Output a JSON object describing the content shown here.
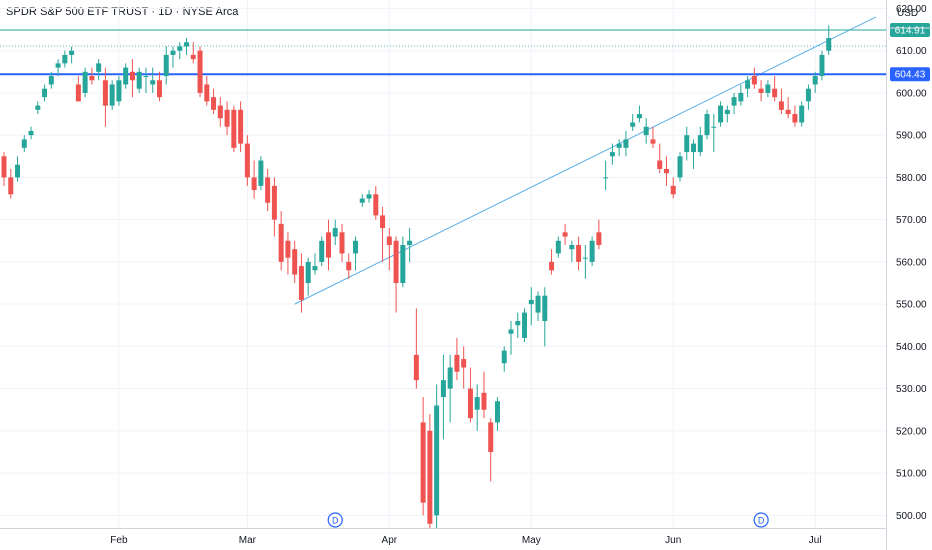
{
  "title": "SPDR S&P 500 ETF TRUST · 1D · NYSE Arca",
  "currency": "USD",
  "colors": {
    "up": "#26a69a",
    "down": "#ef5350",
    "grid": "#f0f3fa",
    "trendline": "#5aaee6",
    "level_blue": "#2962ff",
    "level_green": "#26a69a"
  },
  "chart_data": {
    "type": "candlestick",
    "ylim": [
      497,
      622
    ],
    "yticks": [
      500,
      510,
      520,
      530,
      540,
      550,
      560,
      570,
      580,
      590,
      600,
      610,
      620
    ],
    "xticks": [
      {
        "label": "Feb",
        "index": 17
      },
      {
        "label": "Mar",
        "index": 36
      },
      {
        "label": "Apr",
        "index": 57
      },
      {
        "label": "May",
        "index": 78
      },
      {
        "label": "Jun",
        "index": 99
      },
      {
        "label": "Jul",
        "index": 120
      }
    ],
    "horizontal_levels": [
      {
        "value": 614.91,
        "label": "614.91",
        "color": "#26a69a"
      },
      {
        "value": 604.43,
        "label": "604.43",
        "color": "#2962ff"
      }
    ],
    "trendline": {
      "from": {
        "index": 43,
        "value": 550
      },
      "to": {
        "index": 129,
        "value": 618
      }
    },
    "dividend_markers": [
      {
        "index": 49,
        "label": "D"
      },
      {
        "index": 112,
        "label": "D"
      }
    ],
    "candles": [
      [
        585,
        586,
        578,
        580
      ],
      [
        580,
        582,
        575,
        576
      ],
      [
        580,
        585,
        579,
        583
      ],
      [
        587,
        590,
        586,
        589
      ],
      [
        590,
        592,
        589,
        591
      ],
      [
        596,
        598,
        595,
        597
      ],
      [
        599,
        602,
        598,
        601
      ],
      [
        602,
        605,
        601,
        604
      ],
      [
        606,
        608,
        604,
        607
      ],
      [
        607,
        610,
        606,
        609
      ],
      [
        609,
        611,
        607,
        610
      ],
      [
        602,
        604,
        598,
        598
      ],
      [
        600,
        606,
        599,
        605
      ],
      [
        604,
        606,
        602,
        603
      ],
      [
        605,
        608,
        603,
        607
      ],
      [
        603,
        606,
        592,
        597
      ],
      [
        597,
        603,
        596,
        602
      ],
      [
        598,
        604,
        597,
        603
      ],
      [
        602,
        607,
        601,
        606
      ],
      [
        605,
        608,
        599,
        603
      ],
      [
        601,
        606,
        600,
        605
      ],
      [
        604,
        606,
        600,
        604
      ],
      [
        602,
        606,
        600,
        603
      ],
      [
        603,
        605,
        598,
        599
      ],
      [
        604,
        611,
        602,
        609
      ],
      [
        609,
        611,
        606,
        610
      ],
      [
        610,
        612,
        608,
        611
      ],
      [
        611,
        613,
        609,
        612
      ],
      [
        609,
        612,
        607,
        608
      ],
      [
        610,
        611,
        599,
        600
      ],
      [
        602,
        604,
        597,
        598
      ],
      [
        599,
        601,
        595,
        596
      ],
      [
        597,
        599,
        592,
        594
      ],
      [
        596,
        598,
        590,
        592
      ],
      [
        596,
        597,
        586,
        587
      ],
      [
        596,
        598,
        586,
        588
      ],
      [
        588,
        590,
        578,
        580
      ],
      [
        580,
        584,
        575,
        577
      ],
      [
        578,
        585,
        577,
        584
      ],
      [
        580,
        582,
        572,
        574
      ],
      [
        578,
        580,
        566,
        570
      ],
      [
        569,
        572,
        558,
        560
      ],
      [
        565,
        567,
        557,
        561
      ],
      [
        563,
        565,
        555,
        557
      ],
      [
        559,
        562,
        548,
        551
      ],
      [
        555,
        561,
        552,
        560
      ],
      [
        558,
        562,
        557,
        559
      ],
      [
        560,
        566,
        559,
        565
      ],
      [
        567,
        570,
        558,
        561
      ],
      [
        566,
        570,
        564,
        568
      ],
      [
        567,
        569,
        560,
        562
      ],
      [
        560,
        562,
        556,
        558
      ],
      [
        562,
        566,
        558,
        565
      ],
      [
        574,
        576,
        573,
        575
      ],
      [
        575,
        577,
        574,
        576
      ],
      [
        576,
        578,
        570,
        571
      ],
      [
        571,
        573,
        560,
        568
      ],
      [
        566,
        568,
        558,
        564
      ],
      [
        565,
        566,
        548,
        555
      ],
      [
        555,
        566,
        554,
        564
      ],
      [
        564,
        568,
        560,
        565
      ],
      [
        538,
        549,
        530,
        532
      ],
      [
        522,
        528,
        500,
        503
      ],
      [
        520,
        524,
        497,
        498
      ],
      [
        500,
        531,
        497,
        526
      ],
      [
        528,
        538,
        518,
        532
      ],
      [
        530,
        538,
        522,
        535
      ],
      [
        538,
        542,
        532,
        534
      ],
      [
        537,
        540,
        530,
        535
      ],
      [
        530,
        535,
        522,
        523
      ],
      [
        525,
        531,
        520,
        528
      ],
      [
        529,
        534,
        523,
        525
      ],
      [
        522,
        523,
        508,
        515
      ],
      [
        522,
        528,
        520,
        527
      ],
      [
        536,
        540,
        534,
        539
      ],
      [
        543,
        546,
        538,
        544
      ],
      [
        545,
        548,
        542,
        546
      ],
      [
        542,
        549,
        541,
        548
      ],
      [
        550,
        554,
        545,
        551
      ],
      [
        548,
        553,
        546,
        552
      ],
      [
        546,
        554,
        540,
        552
      ],
      [
        560,
        563,
        557,
        558
      ],
      [
        562,
        566,
        561,
        565
      ],
      [
        567,
        569,
        564,
        566
      ],
      [
        563,
        565,
        560,
        564
      ],
      [
        564,
        566,
        558,
        560
      ],
      [
        561,
        564,
        556,
        561
      ],
      [
        560,
        566,
        559,
        565
      ],
      [
        567,
        570,
        563,
        564
      ],
      [
        580,
        584,
        577,
        580
      ],
      [
        585,
        588,
        583,
        586
      ],
      [
        587,
        589,
        585,
        588
      ],
      [
        587,
        591,
        585,
        589
      ],
      [
        592,
        595,
        591,
        593
      ],
      [
        594,
        597,
        593,
        595
      ],
      [
        590,
        594,
        588,
        592
      ],
      [
        589,
        592,
        587,
        588
      ],
      [
        584,
        588,
        581,
        582
      ],
      [
        582,
        585,
        578,
        581
      ],
      [
        578,
        580,
        575,
        576
      ],
      [
        580,
        586,
        579,
        585
      ],
      [
        586,
        592,
        584,
        590
      ],
      [
        586,
        589,
        582,
        588
      ],
      [
        586,
        592,
        585,
        590
      ],
      [
        590,
        596,
        589,
        595
      ],
      [
        592,
        595,
        586,
        592
      ],
      [
        593,
        598,
        592,
        597
      ],
      [
        595,
        597,
        593,
        596
      ],
      [
        597,
        600,
        595,
        599
      ],
      [
        598,
        602,
        597,
        600
      ],
      [
        601,
        604,
        599,
        603
      ],
      [
        604,
        606,
        601,
        602
      ],
      [
        601,
        603,
        598,
        600
      ],
      [
        600,
        603,
        599,
        602
      ],
      [
        601,
        604,
        598,
        599
      ],
      [
        598,
        601,
        595,
        596
      ],
      [
        596,
        599,
        594,
        595
      ],
      [
        595,
        597,
        592,
        593
      ],
      [
        593,
        598,
        592,
        597
      ],
      [
        598,
        602,
        596,
        601
      ],
      [
        602,
        605,
        600,
        604
      ],
      [
        604,
        610,
        603,
        609
      ],
      [
        610,
        616,
        609,
        613
      ]
    ]
  }
}
